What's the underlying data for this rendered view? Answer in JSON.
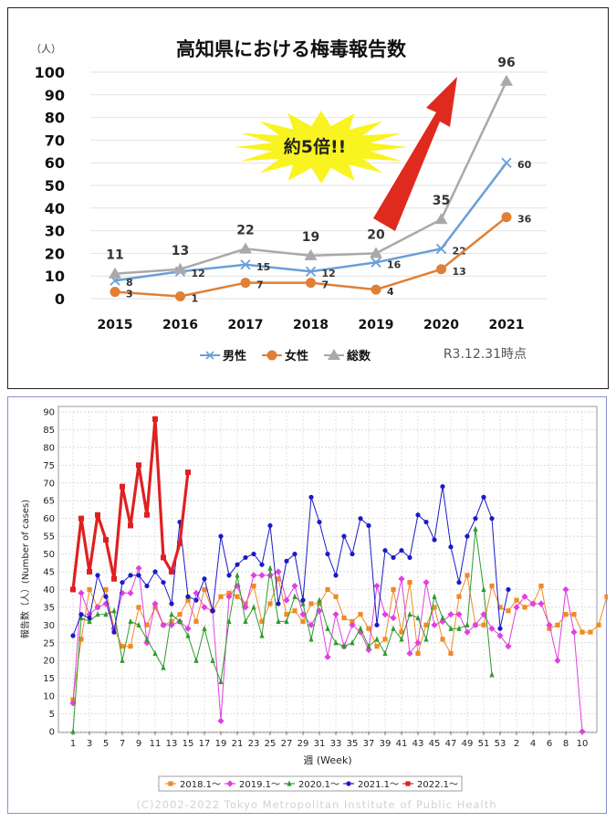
{
  "top_chart": {
    "title": "高知県における梅毒報告数",
    "unit_label": "（人）",
    "callout": "約5倍!!",
    "note": "R3.12.31時点",
    "chart_data": {
      "type": "line",
      "categories": [
        "2015",
        "2016",
        "2017",
        "2018",
        "2019",
        "2020",
        "2021"
      ],
      "ylim": [
        0,
        100
      ],
      "yticks": [
        "0",
        "10",
        "20",
        "30",
        "40",
        "50",
        "60",
        "70",
        "80",
        "90",
        "100"
      ],
      "series": [
        {
          "name": "男性",
          "color": "#6a9fd8",
          "values": [
            8,
            12,
            15,
            12,
            16,
            22,
            60
          ],
          "labels": [
            "8",
            "12",
            "15",
            "12",
            "16",
            "22",
            "60"
          ]
        },
        {
          "name": "女性",
          "color": "#e07f36",
          "values": [
            3,
            1,
            7,
            7,
            4,
            13,
            36
          ],
          "labels": [
            "3",
            "1",
            "7",
            "7",
            "4",
            "13",
            "36"
          ]
        },
        {
          "name": "総数",
          "color": "#a9a9a9",
          "values": [
            11,
            13,
            22,
            19,
            20,
            35,
            96
          ],
          "labels": [
            "11",
            "13",
            "22",
            "19",
            "20",
            "35",
            "96"
          ]
        }
      ]
    }
  },
  "bottom_chart": {
    "ylabel": "報告数（人）(Number of cases)",
    "xlabel": "週 (Week)",
    "copyright": "(C)2002-2022 Tokyo Metropolitan Institute of Public Health",
    "chart_data": {
      "type": "line",
      "ylim": [
        0,
        90
      ],
      "yticks": [
        "0",
        "5",
        "10",
        "15",
        "20",
        "25",
        "30",
        "35",
        "40",
        "45",
        "50",
        "55",
        "60",
        "65",
        "70",
        "75",
        "80",
        "85",
        "90"
      ],
      "xticks": [
        "1",
        "3",
        "5",
        "7",
        "9",
        "11",
        "13",
        "15",
        "17",
        "19",
        "21",
        "23",
        "25",
        "27",
        "29",
        "31",
        "33",
        "35",
        "37",
        "39",
        "41",
        "43",
        "45",
        "47",
        "49",
        "51",
        "53",
        "2",
        "4",
        "6",
        "8",
        "10",
        "12",
        "14",
        "16",
        "18",
        "20",
        "22",
        "24",
        "26",
        "28",
        "30",
        "32",
        "34",
        "36",
        "38",
        "40",
        "42",
        "44",
        "46",
        "48",
        "50",
        "52",
        "1"
      ],
      "xtick_labels": [
        "1",
        "3",
        "5",
        "7",
        "9",
        "11",
        "13",
        "15",
        "17",
        "19",
        "21",
        "23",
        "25",
        "27",
        "29",
        "31",
        "33",
        "35",
        "37",
        "39",
        "41",
        "43",
        "45",
        "47",
        "49",
        "51",
        "53",
        "2",
        "4",
        "6",
        "8",
        "10",
        "12",
        "14",
        "16",
        "18",
        "20",
        "22",
        "24",
        "26",
        "28",
        "30",
        "32",
        "34",
        "36",
        "38",
        "40",
        "42",
        "44",
        "46",
        "48",
        "50",
        "52",
        "1"
      ],
      "series": [
        {
          "name": "2018.1～",
          "color": "#f08a24",
          "marker": "square",
          "values": [
            9,
            26,
            40,
            35,
            40,
            29,
            24,
            24,
            35,
            30,
            35,
            30,
            31,
            33,
            37,
            31,
            40,
            34,
            38,
            39,
            38,
            36,
            41,
            31,
            36,
            43,
            33,
            34,
            31,
            36,
            36,
            40,
            38,
            32,
            31,
            33,
            29,
            24,
            26,
            40,
            28,
            42,
            22,
            30,
            35,
            26,
            22,
            38,
            44,
            30,
            30,
            41,
            35,
            34,
            37,
            35,
            36,
            41,
            29,
            30,
            33,
            33,
            28,
            28,
            30,
            38,
            29,
            30,
            40,
            40,
            30,
            9
          ]
        },
        {
          "name": "2019.1～",
          "color": "#e040e0",
          "marker": "diamond",
          "values": [
            8,
            39,
            33,
            35,
            36,
            29,
            39,
            39,
            46,
            25,
            36,
            30,
            30,
            31,
            29,
            39,
            35,
            34,
            3,
            38,
            41,
            35,
            44,
            44,
            44,
            45,
            37,
            41,
            33,
            30,
            34,
            21,
            33,
            24,
            30,
            28,
            23,
            41,
            33,
            32,
            43,
            22,
            25,
            42,
            30,
            31,
            33,
            33,
            28,
            30,
            33,
            29,
            27,
            24,
            35,
            38,
            36,
            36,
            30,
            20,
            40,
            28,
            0
          ]
        },
        {
          "name": "2020.1～",
          "color": "#2e9a2e",
          "marker": "triangle",
          "values": [
            0,
            32,
            31,
            33,
            33,
            34,
            20,
            31,
            30,
            26,
            22,
            18,
            33,
            31,
            27,
            20,
            29,
            20,
            14,
            31,
            44,
            31,
            35,
            27,
            46,
            31,
            31,
            38,
            36,
            26,
            37,
            29,
            25,
            24,
            25,
            29,
            24,
            26,
            22,
            29,
            26,
            33,
            32,
            26,
            38,
            32,
            29,
            29,
            30,
            57,
            40,
            16
          ]
        },
        {
          "name": "2021.1～",
          "color": "#1a1ac8",
          "marker": "circle",
          "values": [
            27,
            33,
            32,
            44,
            38,
            28,
            42,
            44,
            44,
            41,
            45,
            42,
            36,
            59,
            38,
            37,
            43,
            34,
            55,
            44,
            47,
            49,
            50,
            47,
            58,
            36,
            48,
            50,
            37,
            66,
            59,
            50,
            44,
            55,
            50,
            60,
            58,
            30,
            51,
            49,
            51,
            49,
            61,
            59,
            54,
            69,
            52,
            42,
            55,
            60,
            66,
            60,
            29,
            40
          ]
        },
        {
          "name": "2022.1～",
          "color": "#e02020",
          "marker": "square",
          "values": [
            40,
            60,
            45,
            61,
            54,
            43,
            69,
            58,
            75,
            61,
            88,
            49,
            45,
            53,
            73
          ]
        }
      ]
    }
  }
}
